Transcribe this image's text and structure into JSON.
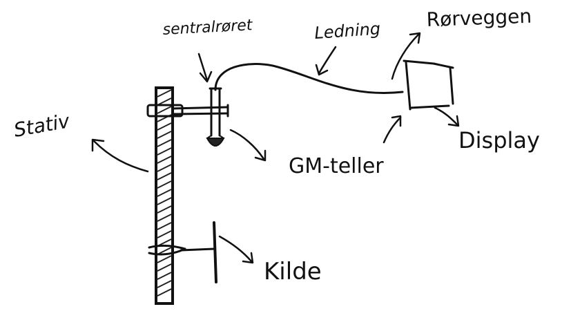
{
  "labels": {
    "sentralroret": "sentralrøret",
    "ledning": "Ledning",
    "rorveggen": "Rørveggen",
    "statiz": "Stativ",
    "gm_teller": "GM-teller",
    "display": "Display",
    "kilde": "Kilde"
  },
  "colors": {
    "ink": "#111111",
    "background": "#ffffff"
  }
}
